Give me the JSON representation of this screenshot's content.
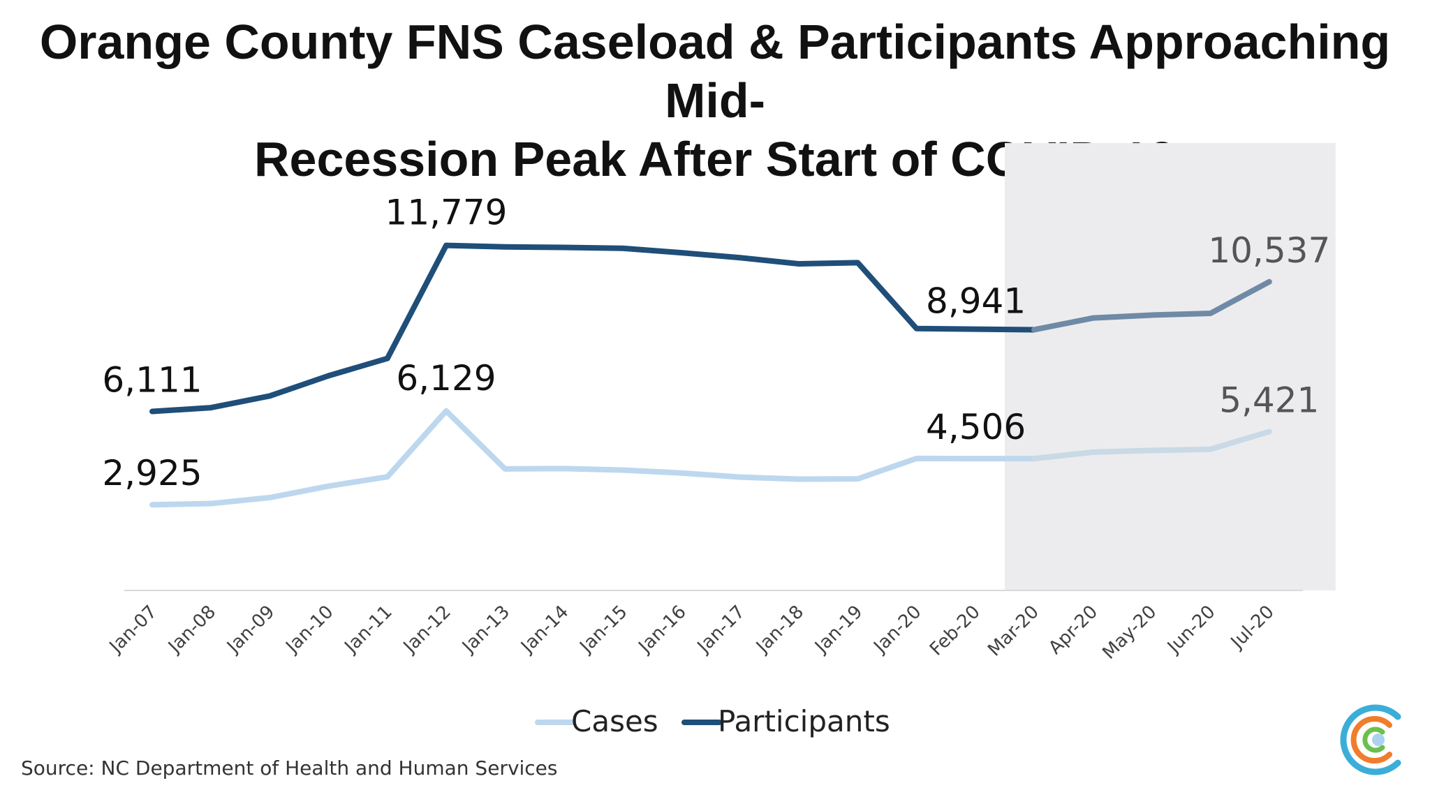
{
  "title_line1": "Orange County FNS Caseload & Participants Approaching Mid-",
  "title_line2": "Recession Peak After Start of COVID-19",
  "source": "Source: NC Department of Health and Human Services",
  "colors": {
    "cases": "#bdd7ee",
    "participants": "#1f4e79",
    "participants_covid": "#6f8aa6",
    "cases_covid": "#c9d9e6",
    "shade": "#ececee",
    "axis": "#d9d9d9"
  },
  "chart_data": {
    "type": "line",
    "categories": [
      "Jan-07",
      "Jan-08",
      "Jan-09",
      "Jan-10",
      "Jan-11",
      "Jan-12",
      "Jan-13",
      "Jan-14",
      "Jan-15",
      "Jan-16",
      "Jan-17",
      "Jan-18",
      "Jan-19",
      "Jan-20",
      "Feb-20",
      "Mar-20",
      "Apr-20",
      "May-20",
      "Jun-20",
      "Jul-20"
    ],
    "series": [
      {
        "name": "Cases",
        "values": [
          2925,
          2965,
          3170,
          3560,
          3880,
          6129,
          4150,
          4160,
          4110,
          4010,
          3870,
          3800,
          3810,
          4506,
          4500,
          4500,
          4720,
          4780,
          4820,
          5421
        ],
        "data_labels": [
          {
            "index": 0,
            "text": "2,925"
          },
          {
            "index": 5,
            "text": "6,129"
          },
          {
            "index": 13,
            "text": "4,506"
          },
          {
            "index": 19,
            "text": "5,421"
          }
        ]
      },
      {
        "name": "Participants",
        "values": [
          6111,
          6240,
          6640,
          7330,
          7920,
          11779,
          11730,
          11710,
          11680,
          11530,
          11360,
          11150,
          11190,
          8941,
          8920,
          8900,
          9300,
          9400,
          9460,
          10537
        ],
        "data_labels": [
          {
            "index": 0,
            "text": "6,111"
          },
          {
            "index": 5,
            "text": "11,779"
          },
          {
            "index": 13,
            "text": "8,941"
          },
          {
            "index": 19,
            "text": "10,537"
          }
        ]
      }
    ],
    "highlight_range": [
      "Mar-20",
      "Jul-20"
    ],
    "ylim": [
      0,
      13000
    ],
    "legend": "bottom-center",
    "grid": false
  }
}
